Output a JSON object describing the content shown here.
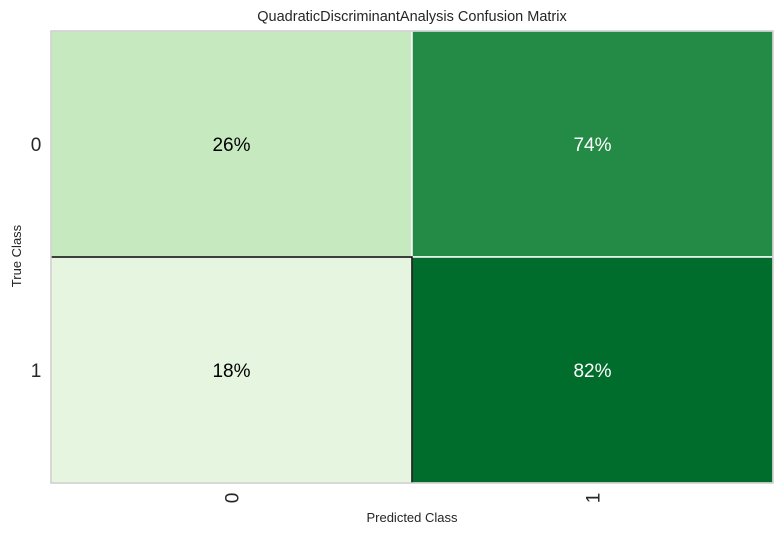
{
  "chart_data": {
    "type": "heatmap",
    "title": "QuadraticDiscriminantAnalysis Confusion Matrix",
    "xlabel": "Predicted Class",
    "ylabel": "True Class",
    "x_categories": [
      "0",
      "1"
    ],
    "y_categories": [
      "0",
      "1"
    ],
    "values": [
      [
        26,
        74
      ],
      [
        18,
        82
      ]
    ],
    "value_labels": [
      [
        "26%",
        "74%"
      ],
      [
        "18%",
        "82%"
      ]
    ],
    "colors": [
      [
        "#c7e9c0",
        "#238b45"
      ],
      [
        "#e5f5e0",
        "#006d2c"
      ]
    ],
    "label_colors": [
      [
        "#000000",
        "#ffffff"
      ],
      [
        "#000000",
        "#ffffff"
      ]
    ],
    "grid": false
  }
}
